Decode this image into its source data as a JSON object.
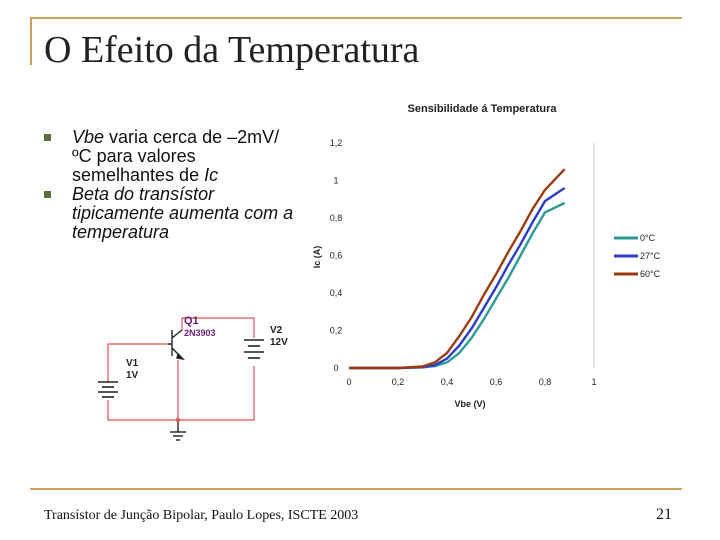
{
  "slide": {
    "title": "O Efeito da Temperatura",
    "bullets": [
      {
        "parts": [
          {
            "t": "Vbe",
            "i": true
          },
          {
            "t": " varia cerca de –2mV/ºC para valores semelhantes de ",
            "i": false
          },
          {
            "t": "Ic",
            "i": true
          }
        ]
      },
      {
        "parts": [
          {
            "t": "Beta do transístor tipicamente aumenta com a temperatura",
            "i": true
          }
        ]
      }
    ],
    "footer": "Transístor de Junção Bipolar, Paulo Lopes, ISCTE 2003",
    "page_number": "21"
  },
  "circuit": {
    "q1_label": "Q1",
    "q1_part": "2N3903",
    "v1_label": "V1",
    "v1_value": "1V",
    "v2_label": "V2",
    "v2_value": "12V",
    "wire_color": "#d9534f"
  },
  "chart_data": {
    "type": "line",
    "title": "Sensibilidade á Temperatura",
    "xlabel": "Vbe (V)",
    "ylabel": "Ic (A)",
    "xlim": [
      0,
      1
    ],
    "ylim": [
      0,
      1.2
    ],
    "xticks": [
      "0",
      "0,2",
      "0,4",
      "0,6",
      "0,8",
      "1"
    ],
    "yticks": [
      "0",
      "0,2",
      "0,4",
      "0,6",
      "0,8",
      "1",
      "1,2"
    ],
    "legend_position": "right",
    "series": [
      {
        "name": "0°C",
        "color": "#2e9a96",
        "x": [
          0.2,
          0.3,
          0.35,
          0.4,
          0.45,
          0.5,
          0.55,
          0.6,
          0.65,
          0.7,
          0.75,
          0.8,
          0.88
        ],
        "y": [
          0.0,
          0.003,
          0.01,
          0.03,
          0.08,
          0.16,
          0.26,
          0.37,
          0.48,
          0.6,
          0.72,
          0.83,
          0.88
        ]
      },
      {
        "name": "27°C",
        "color": "#2b3cc8",
        "x": [
          0.2,
          0.3,
          0.35,
          0.4,
          0.45,
          0.5,
          0.55,
          0.6,
          0.65,
          0.7,
          0.75,
          0.8,
          0.88
        ],
        "y": [
          0.0,
          0.005,
          0.015,
          0.05,
          0.12,
          0.21,
          0.32,
          0.43,
          0.55,
          0.66,
          0.78,
          0.89,
          0.96
        ]
      },
      {
        "name": "60°C",
        "color": "#9b3b12",
        "x": [
          0.2,
          0.3,
          0.35,
          0.4,
          0.45,
          0.5,
          0.55,
          0.6,
          0.65,
          0.7,
          0.75,
          0.8,
          0.88
        ],
        "y": [
          0.0,
          0.008,
          0.03,
          0.08,
          0.17,
          0.27,
          0.39,
          0.5,
          0.62,
          0.73,
          0.85,
          0.95,
          1.06
        ]
      }
    ]
  }
}
